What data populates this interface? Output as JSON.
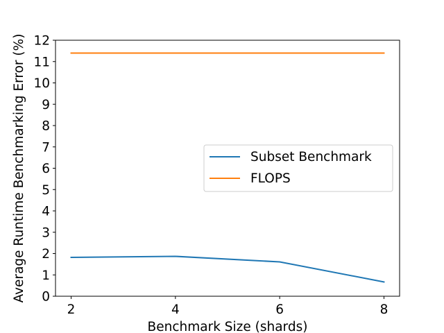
{
  "chart_data": {
    "type": "line",
    "xlabel": "Benchmark Size (shards)",
    "ylabel": "Average Runtime Benchmarking Error (%)",
    "x": [
      2,
      4,
      6,
      8
    ],
    "xticks": [
      "2",
      "4",
      "6",
      "8"
    ],
    "yticks": [
      "0",
      "1",
      "2",
      "3",
      "4",
      "5",
      "6",
      "7",
      "8",
      "9",
      "10",
      "11",
      "12"
    ],
    "xlim": [
      1.7,
      8.3
    ],
    "ylim": [
      0,
      12
    ],
    "grid": false,
    "legend_position": "center-right",
    "series": [
      {
        "name": "Subset Benchmark",
        "color": "#1f77b4",
        "values": [
          1.82,
          1.87,
          1.61,
          0.67
        ]
      },
      {
        "name": "FLOPS",
        "color": "#ff7f0e",
        "values": [
          11.4,
          11.4,
          11.4,
          11.4
        ]
      }
    ]
  }
}
